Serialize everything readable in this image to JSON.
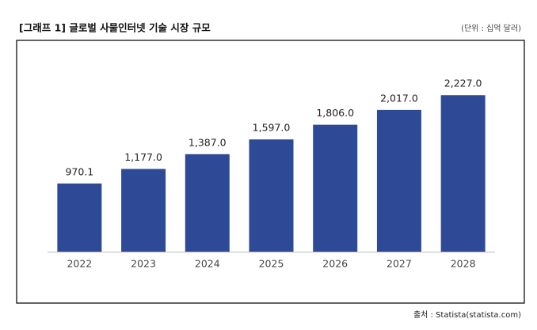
{
  "chart_data": {
    "type": "bar",
    "title": "[그래프 1] 글로벌 사물인터넷 기술 시장 규모",
    "subtitle": "(단위 : 십억 달러)",
    "source": "출처 : Statista(statista.com)",
    "categories": [
      "2022",
      "2023",
      "2024",
      "2025",
      "2026",
      "2027",
      "2028"
    ],
    "values": [
      970.1,
      1177.0,
      1387.0,
      1597.0,
      1806.0,
      2017.0,
      2227.0
    ],
    "value_labels": [
      "970.1",
      "1,177.0",
      "1,387.0",
      "1,597.0",
      "1,806.0",
      "2,017.0",
      "2,227.0"
    ],
    "color": "#2e4a97",
    "ylim": [
      0,
      2500
    ]
  }
}
